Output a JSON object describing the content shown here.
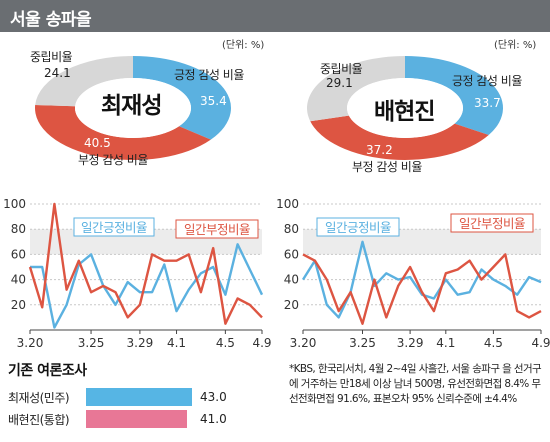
{
  "header": {
    "title": "서울 송파을"
  },
  "unit_label": "(단위: %)",
  "label_neutral": "중립비율",
  "label_positive": "긍정 감성 비율",
  "label_negative": "부정 감성 비율",
  "colors": {
    "positive": "#5bb1e0",
    "negative": "#dd5542",
    "neutral": "#d7d7d7",
    "header": "#6a6e72",
    "bar_choi": "#56b5e4",
    "bar_bae": "#e87796"
  },
  "chart_data": [
    {
      "type": "pie",
      "center_label": "최재성",
      "slices": [
        {
          "label": "긍정 감성 비율",
          "value": 35.4,
          "display": "35.4"
        },
        {
          "label": "부정 감성 비율",
          "value": 40.5,
          "display": "40.5"
        },
        {
          "label": "중립비율",
          "value": 24.1,
          "display": "24.1"
        }
      ]
    },
    {
      "type": "pie",
      "center_label": "배현진",
      "slices": [
        {
          "label": "긍정 감성 비율",
          "value": 33.7,
          "display": "33.7"
        },
        {
          "label": "부정 감성 비율",
          "value": 37.2,
          "display": "37.2"
        },
        {
          "label": "중립비율",
          "value": 29.1,
          "display": "29.1"
        }
      ]
    },
    {
      "type": "line",
      "x_ticks": [
        "3.20",
        "3.25",
        "3.29",
        "4.1",
        "4.5",
        "4.9"
      ],
      "y_ticks": [
        "20",
        "40",
        "60",
        "80",
        "100"
      ],
      "ylim": [
        0,
        100
      ],
      "grid": true,
      "series": [
        {
          "name": "일간긍정비율",
          "values": [
            50,
            50,
            2,
            20,
            52,
            60,
            35,
            20,
            38,
            30,
            30,
            52,
            15,
            32,
            45,
            50,
            28,
            68,
            48,
            28
          ]
        },
        {
          "name": "일간부정비율",
          "values": [
            50,
            18,
            100,
            32,
            55,
            30,
            35,
            30,
            10,
            20,
            60,
            55,
            55,
            60,
            30,
            65,
            5,
            25,
            20,
            10
          ]
        }
      ]
    },
    {
      "type": "line",
      "x_ticks": [
        "3.20",
        "3.25",
        "3.29",
        "4.1",
        "4.5",
        "4.9"
      ],
      "y_ticks": [
        "20",
        "40",
        "60",
        "80",
        "100"
      ],
      "ylim": [
        0,
        100
      ],
      "grid": true,
      "series": [
        {
          "name": "일간긍정비율",
          "values": [
            40,
            55,
            20,
            10,
            30,
            70,
            35,
            45,
            40,
            42,
            28,
            25,
            40,
            28,
            30,
            48,
            40,
            35,
            28,
            42,
            38
          ]
        },
        {
          "name": "일간부정비율",
          "values": [
            60,
            55,
            40,
            15,
            30,
            5,
            40,
            10,
            35,
            50,
            30,
            15,
            45,
            48,
            55,
            40,
            50,
            60,
            15,
            10,
            15
          ]
        }
      ]
    },
    {
      "type": "bar",
      "title": "기존 여론조사",
      "categories": [
        "최재성(민주)",
        "배현진(통합)"
      ],
      "values": [
        43.0,
        41.0
      ],
      "display": [
        "43.0",
        "41.0"
      ]
    }
  ],
  "note": "*KBS, 한국리서치, 4월 2~4일 사흘간, 서울 송파구 을 선거구에 거주하는 만18세 이상 남녀 500명, 유선전화면접 8.4% 무선전화면접 91.6%, 표본오차 95% 신뢰수준에 ±4.4%"
}
